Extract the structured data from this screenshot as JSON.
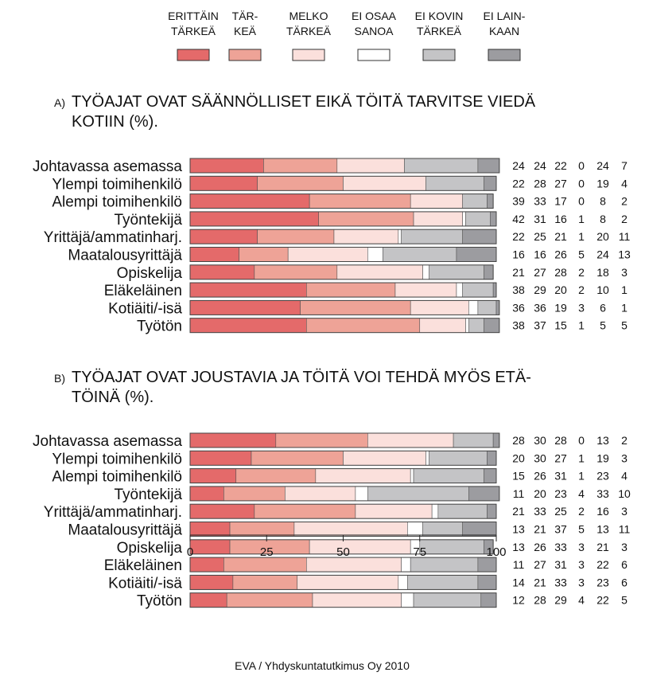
{
  "source": "EVA / Yhdyskuntatutkimus Oy 2010",
  "legend": [
    {
      "line1": "ERITTÄIN",
      "line2": "TÄRKEÄ",
      "color": "#e46a6a"
    },
    {
      "line1": "TÄR-",
      "line2": "KEÄ",
      "color": "#eea397"
    },
    {
      "line1": "MELKO",
      "line2": "TÄRKEÄ",
      "color": "#fbe0dc"
    },
    {
      "line1": "EI OSAA",
      "line2": "SANOA",
      "color": "#ffffff"
    },
    {
      "line1": "EI KOVIN",
      "line2": "TÄRKEÄ",
      "color": "#c4c4c6"
    },
    {
      "line1": "EI LAIN-",
      "line2": "KAAN",
      "color": "#9c9ca0"
    }
  ],
  "chart_data": [
    {
      "type": "bar",
      "stacked": true,
      "orientation": "horizontal",
      "letter": "A)",
      "title_line1": "TYÖAJAT OVAT SÄÄNNÖLLISET EIKÄ TÖITÄ TARVITSE VIEDÄ",
      "title_line2": "KOTIIN (%).",
      "xlim": [
        0,
        100
      ],
      "categories": [
        "Johtavassa asemassa",
        "Ylempi toimihenkilö",
        "Alempi toimihenkilö",
        "Työntekijä",
        "Yrittäjä/ammatinharj.",
        "Maatalousyrittäjä",
        "Opiskelija",
        "Eläkeläinen",
        "Kotiäiti/-isä",
        "Työtön"
      ],
      "values": [
        [
          24,
          24,
          22,
          0,
          24,
          7
        ],
        [
          22,
          28,
          27,
          0,
          19,
          4
        ],
        [
          39,
          33,
          17,
          0,
          8,
          2
        ],
        [
          42,
          31,
          16,
          1,
          8,
          2
        ],
        [
          22,
          25,
          21,
          1,
          20,
          11
        ],
        [
          16,
          16,
          26,
          5,
          24,
          13
        ],
        [
          21,
          27,
          28,
          2,
          18,
          3
        ],
        [
          38,
          29,
          20,
          2,
          10,
          1
        ],
        [
          36,
          36,
          19,
          3,
          6,
          1
        ],
        [
          38,
          37,
          15,
          1,
          5,
          5
        ]
      ]
    },
    {
      "type": "bar",
      "stacked": true,
      "orientation": "horizontal",
      "letter": "B)",
      "title_line1": "TYÖAJAT OVAT JOUSTAVIA JA TÖITÄ VOI TEHDÄ MYÖS ETÄ-",
      "title_line2": "TÖINÄ (%).",
      "xlim": [
        0,
        100
      ],
      "xticks": [
        0,
        25,
        50,
        75,
        100
      ],
      "categories": [
        "Johtavassa asemassa",
        "Ylempi toimihenkilö",
        "Alempi toimihenkilö",
        "Työntekijä",
        "Yrittäjä/ammatinharj.",
        "Maatalousyrittäjä",
        "Opiskelija",
        "Eläkeläinen",
        "Kotiäiti/-isä",
        "Työtön"
      ],
      "values": [
        [
          28,
          30,
          28,
          0,
          13,
          2
        ],
        [
          20,
          30,
          27,
          1,
          19,
          3
        ],
        [
          15,
          26,
          31,
          1,
          23,
          4
        ],
        [
          11,
          20,
          23,
          4,
          33,
          10
        ],
        [
          21,
          33,
          25,
          2,
          16,
          3
        ],
        [
          13,
          21,
          37,
          5,
          13,
          11
        ],
        [
          13,
          26,
          33,
          3,
          21,
          3
        ],
        [
          11,
          27,
          31,
          3,
          22,
          6
        ],
        [
          14,
          21,
          33,
          3,
          23,
          6
        ],
        [
          12,
          28,
          29,
          4,
          22,
          5
        ]
      ]
    }
  ]
}
